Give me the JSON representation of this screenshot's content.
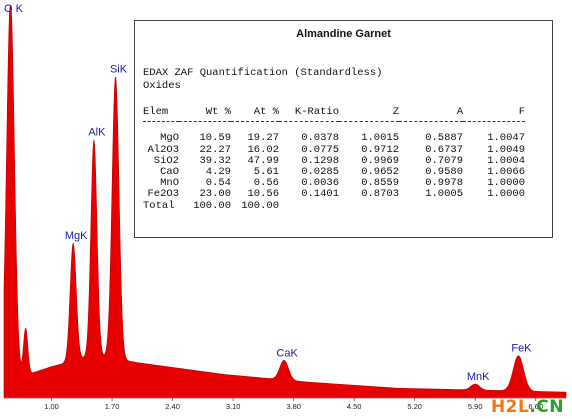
{
  "chart_data": {
    "type": "area",
    "title": "",
    "xlabel": "",
    "ylabel": "",
    "xlim": [
      0.45,
      6.95
    ],
    "ylim": [
      0,
      100
    ],
    "grid": false,
    "x_tick_labels": [
      "1.00",
      "1.70",
      "2.40",
      "3.10",
      "3.80",
      "4.50",
      "5.20",
      "5.90",
      "6.60"
    ],
    "x_ticks": [
      1.0,
      1.7,
      2.4,
      3.1,
      3.8,
      4.5,
      5.2,
      5.9,
      6.6
    ],
    "series": [
      {
        "color": "#e60000",
        "baseline": [
          [
            0.45,
            4
          ],
          [
            1.0,
            8
          ],
          [
            1.5,
            11
          ],
          [
            2.0,
            9
          ],
          [
            3.0,
            6
          ],
          [
            4.0,
            4
          ],
          [
            5.0,
            2.5
          ],
          [
            6.0,
            2
          ],
          [
            6.95,
            1.5
          ]
        ],
        "peaks": [
          {
            "x": 0.525,
            "height": 97,
            "width": 0.045
          },
          {
            "x": 0.7,
            "height": 12,
            "width": 0.025
          },
          {
            "x": 1.25,
            "height": 30,
            "width": 0.035
          },
          {
            "x": 1.49,
            "height": 55,
            "width": 0.035
          },
          {
            "x": 1.74,
            "height": 72,
            "width": 0.04
          },
          {
            "x": 3.69,
            "height": 5,
            "width": 0.05
          },
          {
            "x": 5.9,
            "height": 1.5,
            "width": 0.05
          },
          {
            "x": 6.4,
            "height": 9,
            "width": 0.06
          }
        ]
      }
    ],
    "peak_labels": [
      {
        "text": "O K",
        "x": 0.525,
        "y": 97
      },
      {
        "text": "MgK",
        "x": 1.25,
        "y": 30
      },
      {
        "text": "AlK",
        "x": 1.49,
        "y": 55
      },
      {
        "text": "SiK",
        "x": 1.74,
        "y": 72
      },
      {
        "text": "CaK",
        "x": 3.69,
        "y": 5
      },
      {
        "text": "MnK",
        "x": 5.9,
        "y": 1.5
      },
      {
        "text": "FeK",
        "x": 6.4,
        "y": 9
      }
    ]
  },
  "panel": {
    "title": "Almandine Garnet",
    "heading": "EDAX ZAF Quantification (Standardless)",
    "subheading": "Oxides",
    "columns": [
      "Elem",
      "Wt %",
      "At %",
      "K-Ratio",
      "Z",
      "A",
      "F"
    ],
    "rows": [
      [
        "MgO",
        "10.59",
        "19.27",
        "0.0378",
        "1.0015",
        "0.5887",
        "1.0047"
      ],
      [
        "Al2O3",
        "22.27",
        "16.02",
        "0.0775",
        "0.9712",
        "0.6737",
        "1.0049"
      ],
      [
        "SiO2",
        "39.32",
        "47.99",
        "0.1298",
        "0.9969",
        "0.7079",
        "1.0004"
      ],
      [
        "CaO",
        "4.29",
        "5.61",
        "0.0285",
        "0.9652",
        "0.9580",
        "1.0066"
      ],
      [
        "MnO",
        "0.54",
        "0.56",
        "0.0036",
        "0.8559",
        "0.9978",
        "1.0000"
      ],
      [
        "Fe2O3",
        "23.00",
        "10.56",
        "0.1401",
        "0.8703",
        "1.0005",
        "1.0000"
      ],
      [
        "Total",
        "100.00",
        "100.00",
        "",
        "",
        "",
        ""
      ]
    ]
  },
  "watermark": {
    "part1": "H2L",
    "part2": ".CN"
  }
}
